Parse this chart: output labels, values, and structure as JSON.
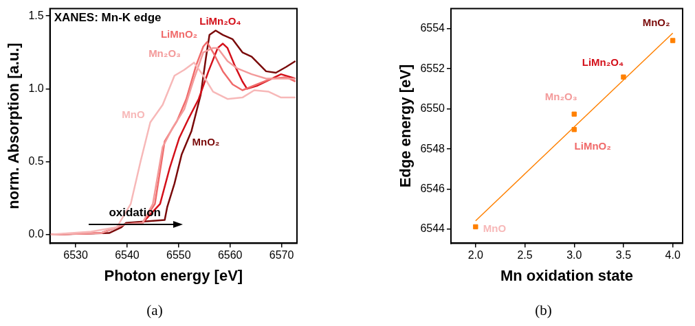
{
  "chart_data": [
    {
      "type": "line",
      "title": "XANES: Mn-K edge",
      "xlabel": "Photon energy [eV]",
      "ylabel": "norm. Absorption [a.u.]",
      "xlim": [
        6525,
        6573
      ],
      "xticks": [
        6530,
        6540,
        6550,
        6560,
        6570
      ],
      "ylim": [
        -0.06,
        1.55
      ],
      "yticks": [
        {
          "value": 0,
          "label": "0.0"
        },
        {
          "value": 0.5,
          "label": "0.5"
        },
        {
          "value": 1,
          "label": "1.0"
        },
        {
          "value": 1.5,
          "label": "1.5"
        }
      ],
      "annotations": [
        "oxidation",
        "(a)"
      ],
      "series": [
        {
          "name": "MnO",
          "color": "#f7b8b8",
          "x": [
            6525,
            6533,
            6538,
            6540.7,
            6542.6,
            6544.5,
            6546.9,
            6549.2,
            6551.1,
            6553,
            6554.8,
            6556.7,
            6559.5,
            6562.4,
            6564.7,
            6567.5,
            6569.9,
            6572.7
          ],
          "values": [
            0,
            0.02,
            0.05,
            0.21,
            0.5,
            0.77,
            0.89,
            1.09,
            1.13,
            1.18,
            1.09,
            0.98,
            0.93,
            0.94,
            0.99,
            0.98,
            0.94,
            0.94
          ]
        },
        {
          "name": "Mn₂O₃",
          "color": "#f39a9a",
          "x": [
            6525,
            6535,
            6539.5,
            6543,
            6545,
            6546.9,
            6548.8,
            6551.1,
            6553,
            6554.8,
            6556.7,
            6557.6,
            6559.5,
            6561.4,
            6564.2,
            6567,
            6569.9,
            6572.7
          ],
          "values": [
            0,
            0.01,
            0.07,
            0.08,
            0.21,
            0.6,
            0.73,
            0.86,
            1.07,
            1.25,
            1.28,
            1.28,
            1.19,
            1.14,
            1.1,
            1.07,
            1.07,
            1.07
          ]
        },
        {
          "name": "LiMnO₂",
          "color": "#f06a6a",
          "x": [
            6525,
            6535,
            6539.5,
            6543,
            6545.4,
            6547.3,
            6549.7,
            6551.5,
            6553.4,
            6554.8,
            6555.5,
            6556.7,
            6558.6,
            6560.5,
            6562.4,
            6565.2,
            6568.1,
            6570.9,
            6572.7
          ],
          "values": [
            0,
            0.01,
            0.07,
            0.08,
            0.21,
            0.64,
            0.78,
            0.93,
            1.16,
            1.29,
            1.32,
            1.25,
            1.12,
            1.03,
            0.99,
            1.03,
            1.07,
            1.08,
            1.05
          ]
        },
        {
          "name": "LiMn₂O₄",
          "color": "#d4101a",
          "x": [
            6525,
            6535,
            6539.5,
            6543,
            6546.4,
            6548.3,
            6550.1,
            6552,
            6553.9,
            6555.8,
            6557.6,
            6558.6,
            6559.5,
            6560.9,
            6562.4,
            6563.3,
            6565.2,
            6568.1,
            6569.9,
            6572.7
          ],
          "values": [
            0,
            0.01,
            0.07,
            0.08,
            0.21,
            0.46,
            0.66,
            0.8,
            0.93,
            1.12,
            1.28,
            1.31,
            1.28,
            1.16,
            1.05,
            1,
            1.02,
            1.07,
            1.1,
            1.07
          ]
        },
        {
          "name": "MnO₂",
          "color": "#7a0a0a",
          "x": [
            6525,
            6536.5,
            6538.9,
            6539.8,
            6547.3,
            6547.8,
            6549.2,
            6550.6,
            6552.5,
            6554.3,
            6555.3,
            6556,
            6557.2,
            6558.6,
            6560.5,
            6562.4,
            6564.2,
            6567,
            6568.9,
            6570.9,
            6572.7
          ],
          "values": [
            0,
            0.01,
            0.05,
            0.08,
            0.1,
            0.19,
            0.35,
            0.55,
            0.71,
            0.96,
            1.21,
            1.37,
            1.4,
            1.37,
            1.34,
            1.25,
            1.22,
            1.12,
            1.11,
            1.15,
            1.19
          ]
        }
      ]
    },
    {
      "type": "scatter",
      "xlabel": "Mn oxidation state",
      "ylabel": "Edge energy [eV]",
      "xlim": [
        1.75,
        4.1
      ],
      "xticks": [
        {
          "value": 2,
          "label": "2.0"
        },
        {
          "value": 2.5,
          "label": "2.5"
        },
        {
          "value": 3,
          "label": "3.0"
        },
        {
          "value": 3.5,
          "label": "3.5"
        },
        {
          "value": 4,
          "label": "4.0"
        }
      ],
      "ylim": [
        6543.3,
        6555
      ],
      "yticks": [
        6544,
        6546,
        6548,
        6550,
        6552,
        6554
      ],
      "annotations": [
        {
          "text": "MnO",
          "x": 2,
          "y": 6544.12
        },
        {
          "text": "Mn₂O₃",
          "x": 3,
          "y": 6549.74
        },
        {
          "text": "LiMnO₂",
          "x": 3,
          "y": 6548.97
        },
        {
          "text": "LiMn₂O₄",
          "x": 3.5,
          "y": 6551.59
        },
        {
          "text": "MnO₂",
          "x": 4,
          "y": 6553.41
        },
        "(b)"
      ],
      "series": [
        {
          "type": "scatter",
          "marker": "square",
          "color": "#ff8000",
          "x": [
            2,
            3,
            3,
            3.5,
            4
          ],
          "values": [
            6544.12,
            6549.74,
            6548.97,
            6551.59,
            6553.41
          ]
        },
        {
          "type": "line",
          "color": "#ff8000",
          "x": [
            2,
            4
          ],
          "values": [
            6544.42,
            6553.78
          ]
        }
      ]
    }
  ]
}
